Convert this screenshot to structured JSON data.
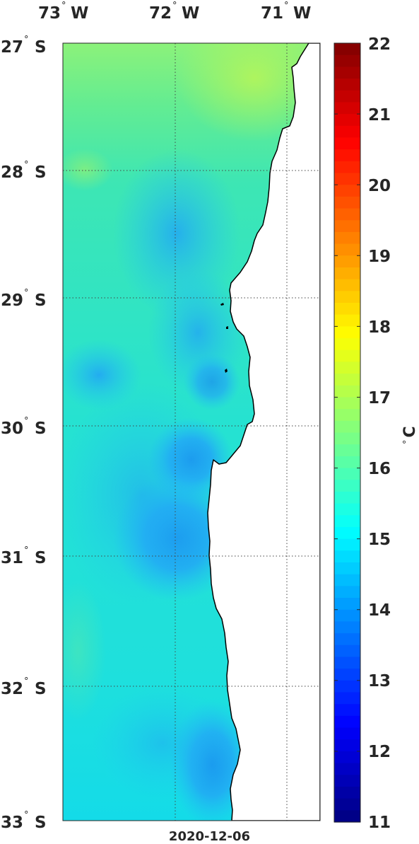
{
  "map": {
    "lon_labels": [
      {
        "deg": "73",
        "hemi": "W"
      },
      {
        "deg": "72",
        "hemi": "W"
      },
      {
        "deg": "71",
        "hemi": "W"
      }
    ],
    "lat_labels": [
      {
        "deg": "27",
        "hemi": "S"
      },
      {
        "deg": "28",
        "hemi": "S"
      },
      {
        "deg": "29",
        "hemi": "S"
      },
      {
        "deg": "30",
        "hemi": "S"
      },
      {
        "deg": "31",
        "hemi": "S"
      },
      {
        "deg": "32",
        "hemi": "S"
      },
      {
        "deg": "33",
        "hemi": "S"
      }
    ],
    "degree_symbol": "°",
    "date": "2020-12-06",
    "land_color": "#ffffff",
    "coast_color": "#000000"
  },
  "colorbar": {
    "min": 11,
    "max": 22,
    "ticks": [
      "22",
      "21",
      "20",
      "19",
      "18",
      "17",
      "16",
      "15",
      "14",
      "13",
      "12",
      "11"
    ],
    "unit_degree": "°",
    "unit_letter": "C",
    "colormap": "jet"
  }
}
